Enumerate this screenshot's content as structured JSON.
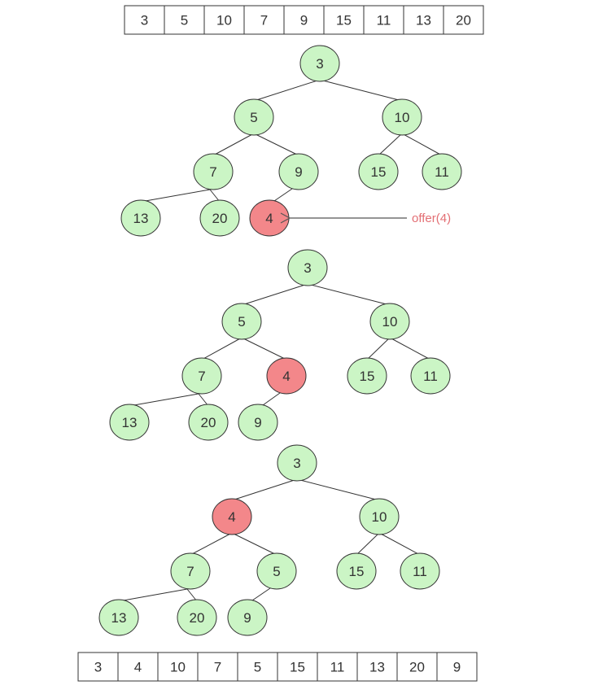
{
  "colors": {
    "node_fill": "#cbf5c5",
    "node_stroke": "#333333",
    "highlight_fill": "#f3878a",
    "annotation": "#e36f74"
  },
  "array_before": [
    "3",
    "5",
    "10",
    "7",
    "9",
    "15",
    "11",
    "13",
    "20"
  ],
  "array_after": [
    "3",
    "4",
    "10",
    "7",
    "5",
    "15",
    "11",
    "13",
    "20",
    "9"
  ],
  "annotation": {
    "label": "offer(4)"
  },
  "trees": [
    {
      "name": "tree-step-1",
      "nodes": [
        {
          "id": "a",
          "value": "3"
        },
        {
          "id": "b",
          "value": "5"
        },
        {
          "id": "c",
          "value": "10"
        },
        {
          "id": "d",
          "value": "7"
        },
        {
          "id": "e",
          "value": "9"
        },
        {
          "id": "f",
          "value": "15"
        },
        {
          "id": "g",
          "value": "11"
        },
        {
          "id": "h",
          "value": "13"
        },
        {
          "id": "i",
          "value": "20"
        },
        {
          "id": "j",
          "value": "4",
          "highlight": true
        }
      ],
      "edges": [
        [
          "a",
          "b"
        ],
        [
          "a",
          "c"
        ],
        [
          "b",
          "d"
        ],
        [
          "b",
          "e"
        ],
        [
          "c",
          "f"
        ],
        [
          "c",
          "g"
        ],
        [
          "d",
          "h"
        ],
        [
          "d",
          "i"
        ],
        [
          "e",
          "j"
        ]
      ]
    },
    {
      "name": "tree-step-2",
      "nodes": [
        {
          "id": "a",
          "value": "3"
        },
        {
          "id": "b",
          "value": "5"
        },
        {
          "id": "c",
          "value": "10"
        },
        {
          "id": "d",
          "value": "7"
        },
        {
          "id": "e",
          "value": "4",
          "highlight": true
        },
        {
          "id": "f",
          "value": "15"
        },
        {
          "id": "g",
          "value": "11"
        },
        {
          "id": "h",
          "value": "13"
        },
        {
          "id": "i",
          "value": "20"
        },
        {
          "id": "j",
          "value": "9"
        }
      ],
      "edges": [
        [
          "a",
          "b"
        ],
        [
          "a",
          "c"
        ],
        [
          "b",
          "d"
        ],
        [
          "b",
          "e"
        ],
        [
          "c",
          "f"
        ],
        [
          "c",
          "g"
        ],
        [
          "d",
          "h"
        ],
        [
          "d",
          "i"
        ],
        [
          "e",
          "j"
        ]
      ]
    },
    {
      "name": "tree-step-3",
      "nodes": [
        {
          "id": "a",
          "value": "3"
        },
        {
          "id": "b",
          "value": "4",
          "highlight": true
        },
        {
          "id": "c",
          "value": "10"
        },
        {
          "id": "d",
          "value": "7"
        },
        {
          "id": "e",
          "value": "5"
        },
        {
          "id": "f",
          "value": "15"
        },
        {
          "id": "g",
          "value": "11"
        },
        {
          "id": "h",
          "value": "13"
        },
        {
          "id": "i",
          "value": "20"
        },
        {
          "id": "j",
          "value": "9"
        }
      ],
      "edges": [
        [
          "a",
          "b"
        ],
        [
          "a",
          "c"
        ],
        [
          "b",
          "d"
        ],
        [
          "b",
          "e"
        ],
        [
          "c",
          "f"
        ],
        [
          "c",
          "g"
        ],
        [
          "d",
          "h"
        ],
        [
          "d",
          "i"
        ],
        [
          "e",
          "j"
        ]
      ]
    }
  ]
}
